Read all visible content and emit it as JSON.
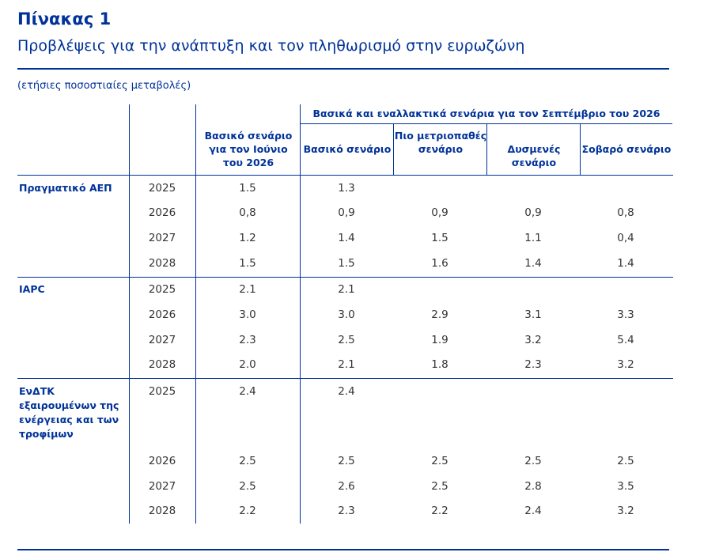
{
  "table": {
    "title": "Πίνακας 1",
    "subtitle": "Προβλέψεις για την ανάπτυξη και τον πληθωρισμό στην ευρωζώνη",
    "units": "(ετήσιες ποσοστιαίες μεταβολές)",
    "group_header": "Βασικά και εναλλακτικά σενάρια για τον Σεπτέμβριο του 2026",
    "column_headers": [
      "Βασικό σενάριο για τον Ιούνιο του 2026",
      "Βασικό σενάριο",
      "Πιο μετριοπαθές σενάριο",
      "Δυσμενές σενάριο",
      "Σοβαρό σενάριο"
    ],
    "sections": [
      {
        "label": "Πραγματικό ΑΕΠ",
        "rows": [
          {
            "year": "2025",
            "values": [
              "1.5",
              "1.3",
              "",
              "",
              ""
            ]
          },
          {
            "year": "2026",
            "values": [
              "0,8",
              "0,9",
              "0,9",
              "0,9",
              "0,8"
            ]
          },
          {
            "year": "2027",
            "values": [
              "1.2",
              "1.4",
              "1.5",
              "1.1",
              "0,4"
            ]
          },
          {
            "year": "2028",
            "values": [
              "1.5",
              "1.5",
              "1.6",
              "1.4",
              "1.4"
            ]
          }
        ]
      },
      {
        "label": "ΙΑΡC",
        "rows": [
          {
            "year": "2025",
            "values": [
              "2.1",
              "2.1",
              "",
              "",
              ""
            ]
          },
          {
            "year": "2026",
            "values": [
              "3.0",
              "3.0",
              "2.9",
              "3.1",
              "3.3"
            ]
          },
          {
            "year": "2027",
            "values": [
              "2.3",
              "2.5",
              "1.9",
              "3.2",
              "5.4"
            ]
          },
          {
            "year": "2028",
            "values": [
              "2.0",
              "2.1",
              "1.8",
              "2.3",
              "3.2"
            ]
          }
        ]
      },
      {
        "label": "ΕνΔΤΚ εξαιρουμένων της ενέργειας και των τροφίμων",
        "rows": [
          {
            "year": "2025",
            "values": [
              "2.4",
              "2.4",
              "",
              "",
              ""
            ]
          },
          {
            "year": "2026",
            "values": [
              "2.5",
              "2.5",
              "2.5",
              "2.5",
              "2.5"
            ]
          },
          {
            "year": "2027",
            "values": [
              "2.5",
              "2.6",
              "2.5",
              "2.8",
              "3.5"
            ]
          },
          {
            "year": "2028",
            "values": [
              "2.2",
              "2.3",
              "2.2",
              "2.4",
              "3.2"
            ]
          }
        ]
      }
    ]
  }
}
